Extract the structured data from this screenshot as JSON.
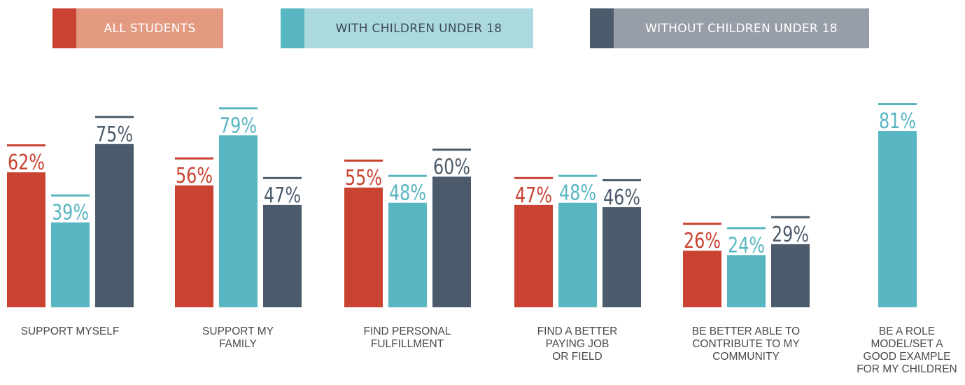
{
  "legend": [
    {
      "label": "ALL STUDENTS",
      "swatch_color": "#c94232",
      "label_bg": "#e39a80"
    },
    {
      "label": "WITH CHILDREN UNDER 18",
      "swatch_color": "#58b6c2",
      "label_bg": "#acd9de"
    },
    {
      "label": "WITHOUT CHILDREN UNDER 18",
      "swatch_color": "#4b5b6b",
      "label_bg": "#989ea8"
    }
  ],
  "chart_data": {
    "type": "bar",
    "title": "",
    "xlabel": "",
    "ylabel": "",
    "ylim": [
      0,
      100
    ],
    "grid": false,
    "legend_position": "top",
    "categories": [
      "SUPPORT MYSELF",
      "SUPPORT MY\nFAMILY",
      "FIND PERSONAL\nFULFILLMENT",
      "FIND A BETTER\nPAYING JOB\nOR FIELD",
      "BE BETTER ABLE TO\nCONTRIBUTE TO MY\nCOMMUNITY",
      "BE A ROLE\nMODEL/SET A\nGOOD EXAMPLE\nFOR MY CHILDREN"
    ],
    "series": [
      {
        "name": "ALL STUDENTS",
        "color": "#c94232",
        "values": [
          62,
          56,
          55,
          47,
          26,
          null
        ]
      },
      {
        "name": "WITH CHILDREN UNDER 18",
        "color": "#58b6c2",
        "values": [
          39,
          79,
          48,
          48,
          24,
          81
        ]
      },
      {
        "name": "WITHOUT CHILDREN UNDER 18",
        "color": "#4b5b6b",
        "values": [
          75,
          47,
          60,
          46,
          29,
          null
        ]
      }
    ],
    "value_labels": [
      [
        "62%",
        "56%",
        "55%",
        "47%",
        "26%",
        ""
      ],
      [
        "39%",
        "79%",
        "48%",
        "48%",
        "24%",
        "81%"
      ],
      [
        "75%",
        "47%",
        "60%",
        "46%",
        "29%",
        ""
      ]
    ]
  }
}
